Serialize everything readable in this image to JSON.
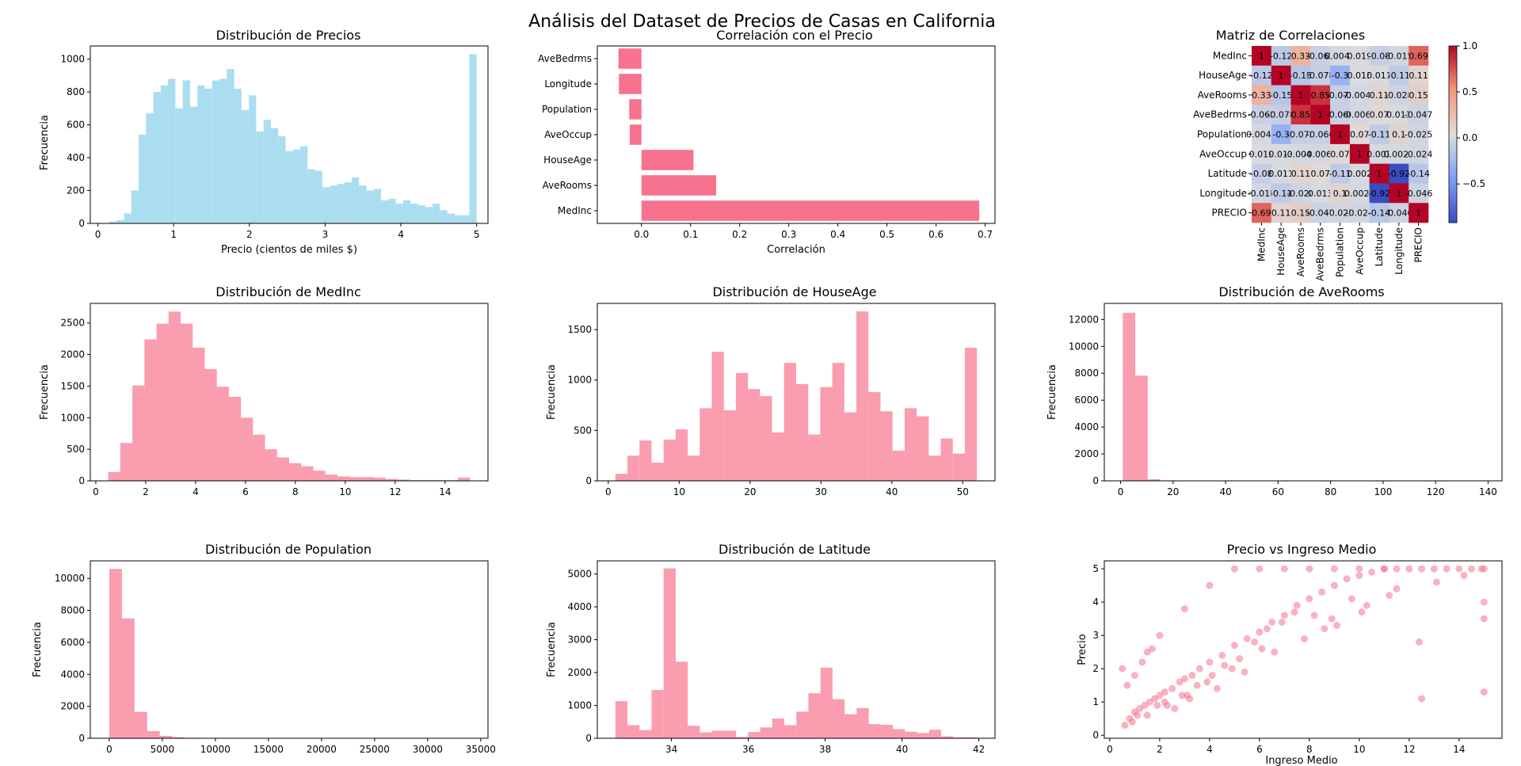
{
  "suptitle": "Análisis del Dataset de Precios de Casas en California",
  "colors": {
    "blue": "#87CEEB",
    "pink": "#F7738D"
  },
  "chart_data": [
    {
      "type": "bar",
      "title": "Distribución de Precios",
      "xlabel": "Precio (cientos de miles $)",
      "ylabel": "Frecuencia",
      "xlim": [
        -0.1,
        5.15
      ],
      "ylim": [
        0,
        1080
      ],
      "xticks": [
        0,
        1,
        2,
        3,
        4,
        5
      ],
      "xtick_labels": [
        "0",
        "1",
        "2",
        "3",
        "4",
        "5"
      ],
      "yticks": [
        0,
        200,
        400,
        600,
        800,
        1000
      ],
      "ytick_labels": [
        "0",
        "200",
        "400",
        "600",
        "800",
        "1000"
      ],
      "bin_edges": [
        0.15,
        0.247,
        0.344,
        0.441,
        0.538,
        0.635,
        0.732,
        0.829,
        0.926,
        1.023,
        1.12,
        1.217,
        1.314,
        1.411,
        1.508,
        1.605,
        1.702,
        1.799,
        1.896,
        1.993,
        2.09,
        2.187,
        2.284,
        2.381,
        2.478,
        2.575,
        2.672,
        2.769,
        2.866,
        2.963,
        3.06,
        3.157,
        3.254,
        3.351,
        3.448,
        3.545,
        3.642,
        3.739,
        3.836,
        3.933,
        4.03,
        4.127,
        4.224,
        4.321,
        4.418,
        4.515,
        4.612,
        4.709,
        4.806,
        4.903,
        5.0
      ],
      "values": [
        10,
        20,
        60,
        200,
        540,
        670,
        800,
        840,
        880,
        700,
        870,
        710,
        840,
        820,
        870,
        880,
        940,
        820,
        690,
        780,
        560,
        630,
        580,
        530,
        440,
        450,
        470,
        330,
        320,
        220,
        230,
        240,
        250,
        280,
        230,
        200,
        210,
        140,
        150,
        120,
        140,
        120,
        110,
        100,
        120,
        80,
        60,
        50,
        50,
        1030
      ],
      "color": "#87CEEB"
    },
    {
      "type": "bar",
      "orientation": "horizontal",
      "title": "Correlación con el Precio",
      "xlabel": "Correlación",
      "ylabel": "",
      "xlim": [
        -0.09,
        0.72
      ],
      "xticks": [
        0,
        0.1,
        0.2,
        0.3,
        0.4,
        0.5,
        0.6,
        0.7
      ],
      "xtick_labels": [
        "0.0",
        "0.1",
        "0.2",
        "0.3",
        "0.4",
        "0.5",
        "0.6",
        "0.7"
      ],
      "categories": [
        "MedInc",
        "AveRooms",
        "HouseAge",
        "AveOccup",
        "Population",
        "Longitude",
        "AveBedrms"
      ],
      "values": [
        0.688,
        0.152,
        0.106,
        -0.024,
        -0.025,
        -0.046,
        -0.047
      ],
      "color": "#F7738D"
    },
    {
      "type": "heatmap",
      "title": "Matriz de Correlaciones",
      "labels": [
        "MedInc",
        "HouseAge",
        "AveRooms",
        "AveBedrms",
        "Population",
        "AveOccup",
        "Latitude",
        "Longitude",
        "PRECIO"
      ],
      "values": [
        [
          1,
          -0.12,
          0.33,
          -0.062,
          0.0048,
          0.019,
          -0.08,
          -0.015,
          0.69
        ],
        [
          -0.12,
          1,
          -0.15,
          -0.078,
          -0.3,
          0.013,
          0.011,
          -0.11,
          0.11
        ],
        [
          0.33,
          -0.15,
          1,
          0.85,
          -0.072,
          -0.0049,
          0.11,
          -0.028,
          0.15
        ],
        [
          -0.062,
          -0.078,
          0.85,
          1,
          -0.066,
          -0.0062,
          0.07,
          0.013,
          -0.047
        ],
        [
          0.0048,
          -0.3,
          -0.072,
          -0.066,
          1,
          0.07,
          -0.11,
          0.1,
          -0.025
        ],
        [
          0.019,
          0.013,
          -0.0049,
          -0.0062,
          0.07,
          1,
          0.002,
          0.0025,
          -0.024
        ],
        [
          -0.08,
          0.011,
          0.11,
          0.07,
          -0.11,
          0.002,
          1,
          -0.92,
          -0.14
        ],
        [
          -0.015,
          -0.11,
          -0.028,
          0.013,
          0.1,
          0.0025,
          -0.92,
          1,
          -0.046
        ],
        [
          0.69,
          0.11,
          0.15,
          -0.047,
          -0.025,
          -0.024,
          -0.14,
          -0.046,
          1
        ]
      ],
      "cell_text": [
        [
          "1",
          "-0.12",
          "0.33",
          "-0.062",
          "0.0048",
          "0.019",
          "-0.08",
          "-0.015",
          "0.69"
        ],
        [
          "-0.12",
          "1",
          "-0.15",
          "-0.078",
          "-0.3",
          "0.013",
          "0.011",
          "-0.11",
          "0.11"
        ],
        [
          "0.33",
          "-0.15",
          "1",
          "0.85",
          "-0.072",
          "-0.0049",
          "0.11",
          "-0.028",
          "0.15"
        ],
        [
          "-0.062",
          "-0.078",
          "0.85",
          "1",
          "-0.066",
          "-0.0062",
          "0.07",
          "0.013",
          "-0.047"
        ],
        [
          "0.0048",
          "-0.3",
          "-0.072",
          "-0.066",
          "1",
          "0.07",
          "-0.11",
          "0.1",
          "-0.025"
        ],
        [
          "0.019",
          "0.013",
          "-0.0049",
          "-0.0062",
          "0.07",
          "1",
          "0.002",
          "0.0025",
          "-0.024"
        ],
        [
          "-0.08",
          "0.011",
          "0.11",
          "0.07",
          "-0.11",
          "0.002",
          "1",
          "-0.92",
          "-0.14"
        ],
        [
          "-0.015",
          "-0.11",
          "-0.028",
          "0.013",
          "0.1",
          "0.0025",
          "-0.92",
          "1",
          "-0.046"
        ],
        [
          "0.69",
          "0.11",
          "0.15",
          "-0.047",
          "-0.025",
          "-0.024",
          "-0.14",
          "-0.046",
          "1"
        ]
      ],
      "colormap": "coolwarm",
      "vmin": -0.92,
      "vmax": 1,
      "colorbar_ticks": [
        1.0,
        0.5,
        0.0,
        -0.5
      ],
      "colorbar_tick_labels": [
        "1.0",
        "0.5",
        "0.0",
        "−0.5"
      ]
    },
    {
      "type": "bar",
      "title": "Distribución de MedInc",
      "xlabel": "",
      "ylabel": "Frecuencia",
      "xlim": [
        -0.22,
        15.72
      ],
      "ylim": [
        0,
        2810
      ],
      "xticks": [
        0,
        2,
        4,
        6,
        8,
        10,
        12,
        14
      ],
      "xtick_labels": [
        "0",
        "2",
        "4",
        "6",
        "8",
        "10",
        "12",
        "14"
      ],
      "yticks": [
        0,
        500,
        1000,
        1500,
        2000,
        2500
      ],
      "ytick_labels": [
        "0",
        "500",
        "1000",
        "1500",
        "2000",
        "2500"
      ],
      "bin_edges": [
        0.5,
        0.983,
        1.467,
        1.95,
        2.433,
        2.917,
        3.4,
        3.883,
        4.367,
        4.85,
        5.333,
        5.817,
        6.3,
        6.783,
        7.267,
        7.75,
        8.233,
        8.717,
        9.2,
        9.683,
        10.167,
        10.65,
        11.133,
        11.617,
        12.1,
        12.583,
        13.067,
        13.55,
        14.033,
        14.517,
        15.0
      ],
      "values": [
        140,
        600,
        1510,
        2240,
        2490,
        2680,
        2490,
        2110,
        1770,
        1490,
        1330,
        1000,
        730,
        500,
        370,
        280,
        230,
        160,
        100,
        70,
        60,
        60,
        50,
        30,
        20,
        10,
        10,
        10,
        10,
        50
      ],
      "color": "#F7738D"
    },
    {
      "type": "bar",
      "title": "Distribución de HouseAge",
      "xlabel": "",
      "ylabel": "Frecuencia",
      "xlim": [
        -1.55,
        54.55
      ],
      "ylim": [
        0,
        1760
      ],
      "xticks": [
        0,
        10,
        20,
        30,
        40,
        50
      ],
      "xtick_labels": [
        "0",
        "10",
        "20",
        "30",
        "40",
        "50"
      ],
      "yticks": [
        0,
        500,
        1000,
        1500
      ],
      "ytick_labels": [
        "0",
        "500",
        "1000",
        "1500"
      ],
      "bin_edges": [
        1,
        2.7,
        4.4,
        6.1,
        7.8,
        9.5,
        11.2,
        12.9,
        14.6,
        16.3,
        18,
        19.7,
        21.4,
        23.1,
        24.8,
        26.5,
        28.2,
        29.9,
        31.6,
        33.3,
        35,
        36.7,
        38.4,
        40.1,
        41.8,
        43.5,
        45.2,
        46.9,
        48.6,
        50.3,
        52
      ],
      "values": [
        70,
        250,
        400,
        180,
        410,
        510,
        250,
        720,
        1280,
        700,
        1070,
        910,
        840,
        480,
        1170,
        960,
        460,
        930,
        1170,
        680,
        1680,
        880,
        690,
        300,
        720,
        640,
        250,
        420,
        270,
        1320
      ],
      "color": "#F7738D"
    },
    {
      "type": "bar",
      "title": "Distribución de AveRooms",
      "xlabel": "",
      "ylabel": "Frecuencia",
      "xlim": [
        -6.2,
        145.3
      ],
      "ylim": [
        0,
        13200
      ],
      "xticks": [
        0,
        20,
        40,
        60,
        80,
        100,
        120,
        140
      ],
      "xtick_labels": [
        "0",
        "20",
        "40",
        "60",
        "80",
        "100",
        "120",
        "140"
      ],
      "yticks": [
        0,
        2000,
        4000,
        6000,
        8000,
        10000,
        12000
      ],
      "ytick_labels": [
        "0",
        "2000",
        "4000",
        "6000",
        "8000",
        "10000",
        "12000"
      ],
      "bin_edges": [
        0.85,
        5.59,
        10.33,
        15.07,
        19.81,
        24.55,
        29.29,
        34.03,
        38.77,
        43.51,
        48.25,
        52.99,
        57.73,
        62.47,
        67.21,
        71.95,
        76.69,
        81.43,
        86.17,
        90.91,
        95.65,
        100.39,
        105.13,
        109.87,
        114.61,
        119.35,
        124.09,
        128.83,
        133.57,
        138.31,
        143.05
      ],
      "values": [
        12500,
        7830,
        120,
        30,
        5,
        3,
        2,
        1,
        1,
        1,
        1,
        0,
        1,
        0,
        0,
        0,
        0,
        0,
        0,
        0,
        0,
        0,
        0,
        0,
        0,
        0,
        0,
        0,
        0,
        1
      ],
      "color": "#F7738D"
    },
    {
      "type": "bar",
      "title": "Distribución de Population",
      "xlabel": "",
      "ylabel": "Frecuencia",
      "xlim": [
        -1783,
        35686
      ],
      "ylim": [
        0,
        11100
      ],
      "xticks": [
        0,
        5000,
        10000,
        15000,
        20000,
        25000,
        30000,
        35000
      ],
      "xtick_labels": [
        "0",
        "5000",
        "10000",
        "15000",
        "20000",
        "25000",
        "30000",
        "35000"
      ],
      "yticks": [
        0,
        2000,
        4000,
        6000,
        8000,
        10000
      ],
      "ytick_labels": [
        "0",
        "2000",
        "4000",
        "6000",
        "8000",
        "10000"
      ],
      "bin_edges": [
        3,
        1192,
        2381,
        3570,
        4759,
        5948,
        7137,
        8326,
        9515,
        10704,
        11893,
        13082,
        14271,
        15460,
        16649,
        17838,
        19027,
        20216,
        21405,
        22594,
        23783,
        24972,
        26161,
        27350,
        28539,
        29728,
        30917,
        32106,
        33295,
        34484,
        35682
      ],
      "values": [
        10600,
        7500,
        1650,
        450,
        150,
        70,
        30,
        20,
        10,
        5,
        3,
        2,
        1,
        1,
        1,
        0,
        0,
        0,
        0,
        0,
        0,
        0,
        0,
        0,
        0,
        0,
        0,
        0,
        0,
        1
      ],
      "color": "#F7738D"
    },
    {
      "type": "bar",
      "title": "Distribución de Latitude",
      "xlabel": "",
      "ylabel": "Frecuencia",
      "xlim": [
        32.07,
        42.42
      ],
      "ylim": [
        0,
        5400
      ],
      "xticks": [
        34,
        36,
        38,
        40,
        42
      ],
      "xtick_labels": [
        "34",
        "36",
        "38",
        "40",
        "42"
      ],
      "yticks": [
        0,
        1000,
        2000,
        3000,
        4000,
        5000
      ],
      "ytick_labels": [
        "0",
        "1000",
        "2000",
        "3000",
        "4000",
        "5000"
      ],
      "bin_edges": [
        32.54,
        32.854,
        33.168,
        33.482,
        33.796,
        34.11,
        34.424,
        34.738,
        35.052,
        35.366,
        35.68,
        35.994,
        36.308,
        36.622,
        36.936,
        37.25,
        37.564,
        37.878,
        38.192,
        38.506,
        38.82,
        39.134,
        39.448,
        39.762,
        40.076,
        40.39,
        40.704,
        41.018,
        41.332,
        41.646,
        41.96
      ],
      "values": [
        1130,
        400,
        250,
        1470,
        5170,
        2330,
        380,
        180,
        230,
        230,
        40,
        190,
        330,
        600,
        400,
        810,
        1370,
        2150,
        1190,
        730,
        920,
        430,
        410,
        280,
        200,
        160,
        260,
        60,
        30,
        30
      ],
      "color": "#F7738D"
    },
    {
      "type": "scatter",
      "title": "Precio vs Ingreso Medio",
      "xlabel": "Ingreso Medio",
      "ylabel": "Precio",
      "xlim": [
        -0.22,
        15.72
      ],
      "ylim": [
        -0.09,
        5.24
      ],
      "xticks": [
        0,
        2,
        4,
        6,
        8,
        10,
        12,
        14
      ],
      "xtick_labels": [
        "0",
        "2",
        "4",
        "6",
        "8",
        "10",
        "12",
        "14"
      ],
      "yticks": [
        0,
        1,
        2,
        3,
        4,
        5
      ],
      "ytick_labels": [
        "0",
        "1",
        "2",
        "3",
        "4",
        "5"
      ],
      "x": [
        0.6,
        0.8,
        1.0,
        1.2,
        1.4,
        1.6,
        1.8,
        2.0,
        2.2,
        2.5,
        2.8,
        3.0,
        3.3,
        3.6,
        4.0,
        4.5,
        5.0,
        5.5,
        6.0,
        6.5,
        7.0,
        7.5,
        8.0,
        8.5,
        9.0,
        9.5,
        10.0,
        10.5,
        11.0,
        11.5,
        12.0,
        12.5,
        13.0,
        13.5,
        14.0,
        14.5,
        15.0,
        15.0,
        15.0,
        1.5,
        2.0,
        3.0,
        4.0,
        5.0,
        6.0,
        7.0,
        8.0,
        9.0,
        10.0,
        11.0,
        0.5,
        0.7,
        1.0,
        1.3,
        1.7,
        2.2,
        2.6,
        3.1,
        3.5,
        4.1,
        4.6,
        5.2,
        5.8,
        6.3,
        6.9,
        7.4,
        8.2,
        9.1,
        10.3,
        11.2,
        12.4,
        13.1,
        14.2,
        0.9,
        1.5,
        2.3,
        3.2,
        4.3,
        5.4,
        6.6,
        7.8,
        8.9,
        10.1,
        12.5,
        15.0,
        14.9,
        11.5,
        9.7,
        8.6,
        6.1,
        4.9,
        3.9,
        2.9,
        1.9,
        1.1
      ],
      "y": [
        0.3,
        0.5,
        0.7,
        0.8,
        0.9,
        1.0,
        1.1,
        1.2,
        1.3,
        1.4,
        1.6,
        1.7,
        1.8,
        2.0,
        2.2,
        2.4,
        2.7,
        2.9,
        3.1,
        3.4,
        3.6,
        3.9,
        4.1,
        4.3,
        4.5,
        4.7,
        4.8,
        4.9,
        5.0,
        5.0,
        5.0,
        5.0,
        5.0,
        5.0,
        5.0,
        5.0,
        5.0,
        4.0,
        3.5,
        2.5,
        3.0,
        3.8,
        4.5,
        5.0,
        5.0,
        5.0,
        5.0,
        5.0,
        5.0,
        5.0,
        2.0,
        1.5,
        1.8,
        2.2,
        2.6,
        1.0,
        0.8,
        1.2,
        1.5,
        1.8,
        2.1,
        2.3,
        2.8,
        3.2,
        3.4,
        3.7,
        3.6,
        3.3,
        3.9,
        4.2,
        2.8,
        4.6,
        4.8,
        0.4,
        0.6,
        0.9,
        1.1,
        1.4,
        1.9,
        2.5,
        2.9,
        3.5,
        3.7,
        1.1,
        1.3,
        5.0,
        4.4,
        4.1,
        3.2,
        2.6,
        2.0,
        1.6,
        1.2,
        0.9,
        0.6
      ],
      "color": "#F7738D"
    }
  ]
}
